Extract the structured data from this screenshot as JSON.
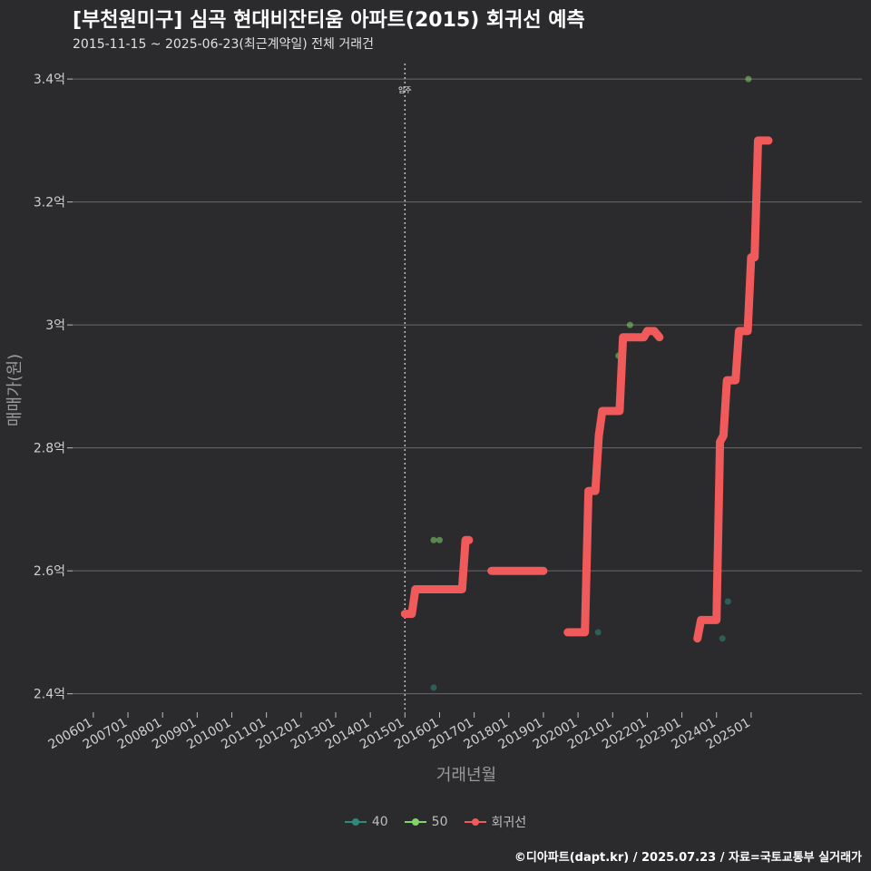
{
  "header": {
    "title": "[부천원미구] 심곡 현대비잔티움 아파트(2015) 회귀선 예측",
    "subtitle": "2015-11-15 ~ 2025-06-23(최근계약일) 전체 거래건"
  },
  "footer": {
    "credit": "©디아파트(dapt.kr) / 2025.07.23 / 자료=국토교통부 실거래가"
  },
  "colors": {
    "background": "#2b2b2d",
    "grid": "#6a6a6a",
    "s40": "#2e8b7a",
    "s50": "#7fd46a",
    "regression": "#f05a5a"
  },
  "chart_data": {
    "type": "line+scatter",
    "xlabel": "거래년월",
    "ylabel": "매매가(원)",
    "x_ticks": [
      "200601",
      "200701",
      "200801",
      "200901",
      "201001",
      "201101",
      "201201",
      "201301",
      "201401",
      "201501",
      "201601",
      "201701",
      "201801",
      "201901",
      "202001",
      "202101",
      "202201",
      "202301",
      "202401",
      "202501"
    ],
    "x_range": [
      2005.4,
      2028.2
    ],
    "y_range": [
      2.37,
      3.44
    ],
    "y_ticks": [
      {
        "value": 2.4,
        "label": "2.4억"
      },
      {
        "value": 2.6,
        "label": "2.6억"
      },
      {
        "value": 2.8,
        "label": "2.8억"
      },
      {
        "value": 3.0,
        "label": "3억"
      },
      {
        "value": 3.2,
        "label": "3.2억"
      },
      {
        "value": 3.4,
        "label": "3.4억"
      }
    ],
    "annotation": {
      "x": 2015.0,
      "label": "입주"
    },
    "scatter": [
      {
        "series": "40",
        "points": [
          [
            2015.83,
            2.41
          ],
          [
            2020.58,
            2.5
          ],
          [
            2024.17,
            2.49
          ],
          [
            2024.33,
            2.55
          ]
        ]
      },
      {
        "series": "50",
        "points": [
          [
            2015.83,
            2.65
          ],
          [
            2016.0,
            2.65
          ],
          [
            2021.17,
            2.95
          ],
          [
            2021.5,
            3.0
          ],
          [
            2024.92,
            3.4
          ]
        ]
      }
    ],
    "regression": [
      [
        [
          2015.0,
          2.53
        ],
        [
          2015.2,
          2.53
        ],
        [
          2015.3,
          2.57
        ],
        [
          2016.6,
          2.57
        ],
        [
          2016.6,
          2.57
        ],
        [
          2016.65,
          2.57
        ],
        [
          2016.75,
          2.65
        ],
        [
          2016.85,
          2.65
        ]
      ],
      [
        [
          2017.5,
          2.6
        ],
        [
          2019.0,
          2.6
        ]
      ],
      [
        [
          2019.7,
          2.5
        ],
        [
          2020.2,
          2.5
        ],
        [
          2020.3,
          2.73
        ],
        [
          2020.5,
          2.73
        ],
        [
          2020.6,
          2.82
        ],
        [
          2020.7,
          2.86
        ],
        [
          2021.2,
          2.86
        ],
        [
          2021.3,
          2.98
        ],
        [
          2021.9,
          2.98
        ],
        [
          2022.0,
          2.99
        ],
        [
          2022.2,
          2.99
        ],
        [
          2022.35,
          2.98
        ]
      ],
      [
        [
          2023.45,
          2.49
        ],
        [
          2023.55,
          2.52
        ],
        [
          2024.0,
          2.52
        ],
        [
          2024.1,
          2.81
        ],
        [
          2024.2,
          2.82
        ],
        [
          2024.3,
          2.91
        ],
        [
          2024.55,
          2.91
        ],
        [
          2024.65,
          2.99
        ],
        [
          2024.9,
          2.99
        ],
        [
          2025.0,
          3.11
        ],
        [
          2025.1,
          3.11
        ],
        [
          2025.2,
          3.3
        ],
        [
          2025.5,
          3.3
        ]
      ]
    ],
    "legend": [
      {
        "key": "40",
        "label": "40"
      },
      {
        "key": "50",
        "label": "50"
      },
      {
        "key": "regression",
        "label": "회귀선"
      }
    ]
  }
}
